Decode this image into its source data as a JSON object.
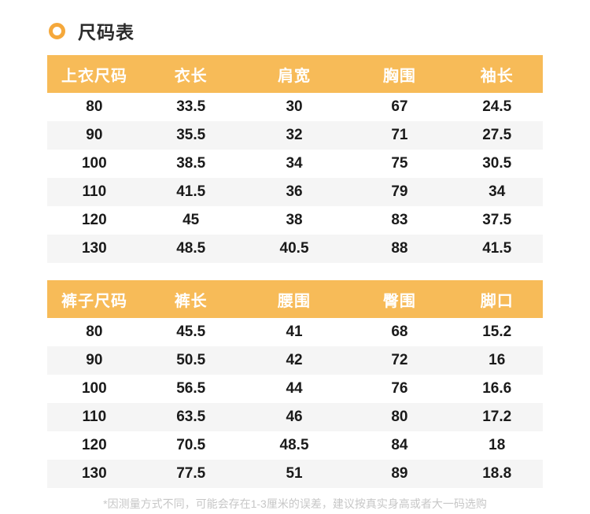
{
  "page": {
    "title": "尺码表",
    "footnote": "*因测量方式不同，可能会存在1-3厘米的误差，建议按真实身高或者大一码选购"
  },
  "colors": {
    "header_bg": "#F7BB58",
    "bullet_ring": "#F5A83B",
    "stripe_bg": "#F5F5F5",
    "header_text": "#FFFFFF",
    "cell_text": "#1A1A1A",
    "footnote_text": "#C7C7C7",
    "title_text": "#2B2B2B"
  },
  "tops_table": {
    "headers": [
      "上衣尺码",
      "衣长",
      "肩宽",
      "胸围",
      "袖长"
    ],
    "rows": [
      [
        "80",
        "33.5",
        "30",
        "67",
        "24.5"
      ],
      [
        "90",
        "35.5",
        "32",
        "71",
        "27.5"
      ],
      [
        "100",
        "38.5",
        "34",
        "75",
        "30.5"
      ],
      [
        "110",
        "41.5",
        "36",
        "79",
        "34"
      ],
      [
        "120",
        "45",
        "38",
        "83",
        "37.5"
      ],
      [
        "130",
        "48.5",
        "40.5",
        "88",
        "41.5"
      ]
    ]
  },
  "pants_table": {
    "headers": [
      "裤子尺码",
      "裤长",
      "腰围",
      "臀围",
      "脚口"
    ],
    "rows": [
      [
        "80",
        "45.5",
        "41",
        "68",
        "15.2"
      ],
      [
        "90",
        "50.5",
        "42",
        "72",
        "16"
      ],
      [
        "100",
        "56.5",
        "44",
        "76",
        "16.6"
      ],
      [
        "110",
        "63.5",
        "46",
        "80",
        "17.2"
      ],
      [
        "120",
        "70.5",
        "48.5",
        "84",
        "18"
      ],
      [
        "130",
        "77.5",
        "51",
        "89",
        "18.8"
      ]
    ]
  }
}
